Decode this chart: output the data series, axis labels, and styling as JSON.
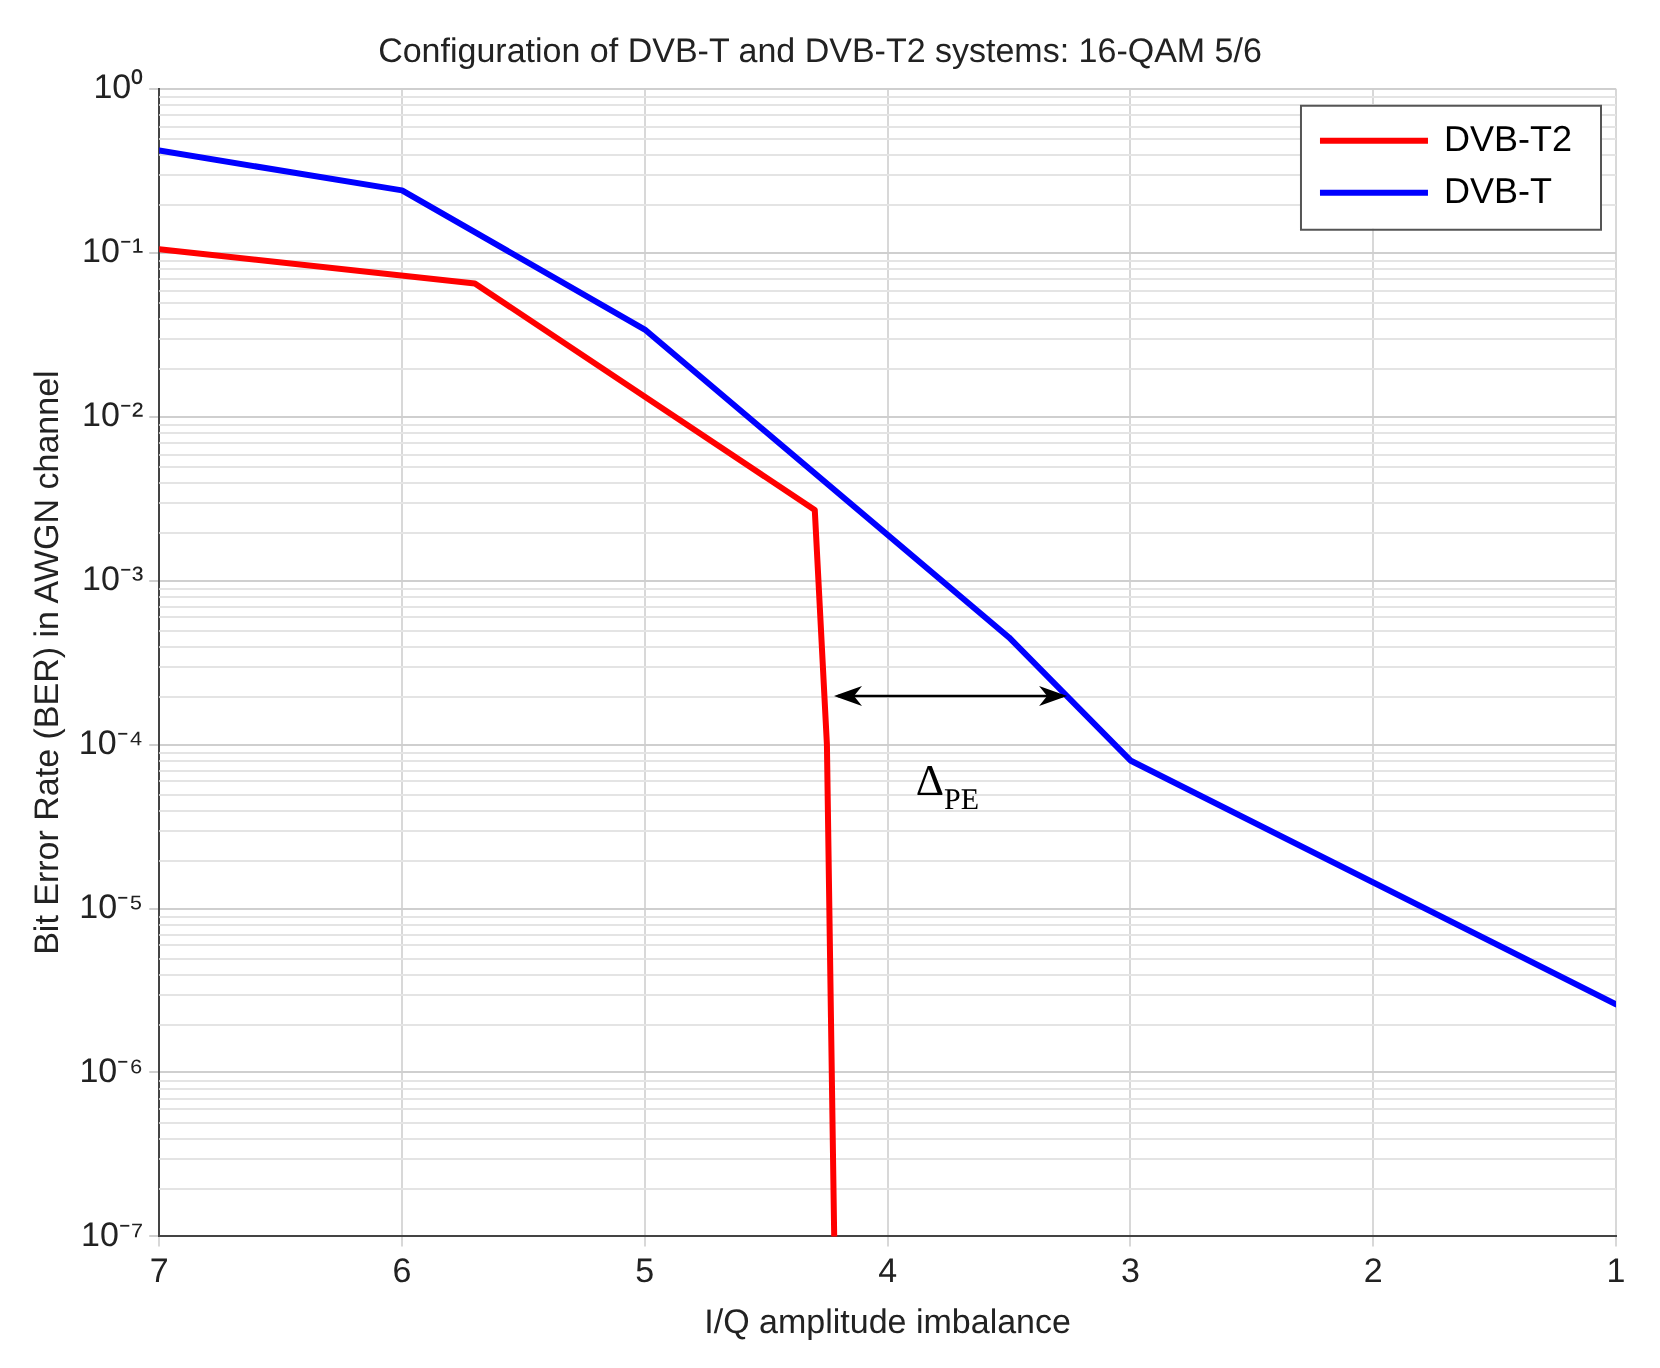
{
  "chart_data": {
    "type": "line",
    "title": "Configuration of DVB-T and DVB-T2 systems: 16-QAM 5/6",
    "xlabel": "I/Q amplitude imbalance",
    "ylabel": "Bit Error Rate (BER) in AWGN channel",
    "series": [
      {
        "name": "DVB-T2",
        "color": "#ff0000",
        "x": [
          7,
          5.7,
          4.3,
          4.25,
          4.22
        ],
        "values": [
          0.105,
          0.065,
          0.0027,
          0.0001,
          1e-07
        ]
      },
      {
        "name": "DVB-T",
        "color": "#0000ff",
        "x": [
          7,
          6,
          5,
          3.5,
          3,
          1
        ],
        "values": [
          0.42,
          0.24,
          0.034,
          0.00045,
          8e-05,
          2.6e-06
        ]
      }
    ],
    "annotations": [
      "Δ$_{PE}$"
    ],
    "xlim": [
      7,
      1
    ],
    "xticks": [
      7,
      6,
      5,
      4,
      3,
      2,
      1
    ],
    "ylim": [
      1e-07,
      1
    ],
    "yticks": [
      {
        "value": 1e-07,
        "label": "10⁻⁷"
      },
      {
        "value": 1e-06,
        "label": "10⁻⁶"
      },
      {
        "value": 1e-05,
        "label": "10⁻⁵"
      },
      {
        "value": 0.0001,
        "label": "10⁻⁴"
      },
      {
        "value": 0.001,
        "label": "10⁻³"
      },
      {
        "value": 0.01,
        "label": "10⁻²"
      },
      {
        "value": 0.1,
        "label": "10⁻¹"
      },
      {
        "value": 1,
        "label": "10⁰"
      }
    ],
    "log": "y",
    "grid": true,
    "legend": "top right",
    "marker": "none",
    "line_style": "solid"
  }
}
